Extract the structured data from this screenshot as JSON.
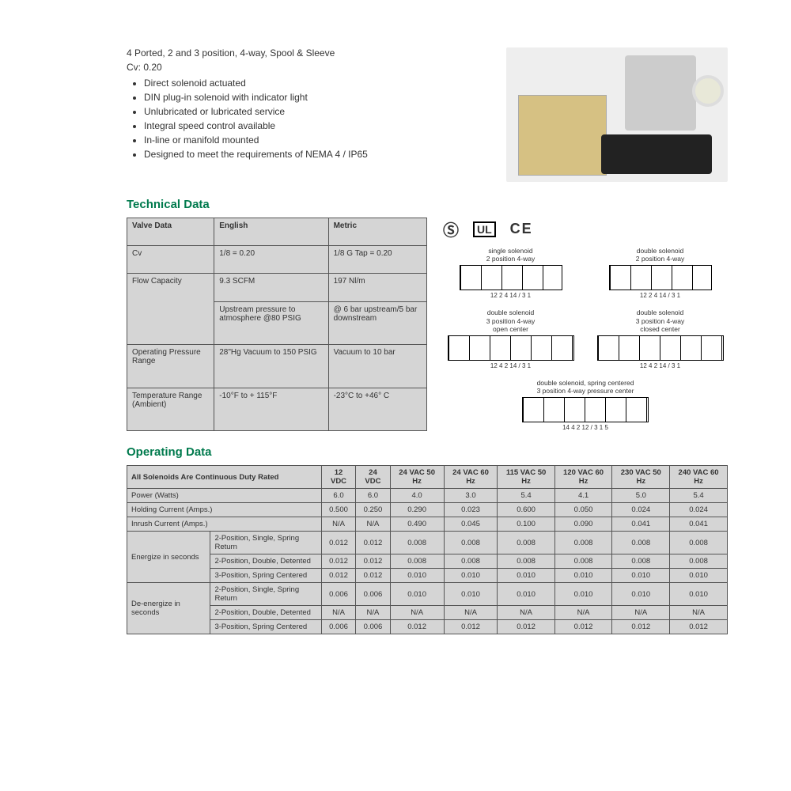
{
  "intro": {
    "headline": "4 Ported, 2 and 3 position, 4-way, Spool & Sleeve",
    "cv_line": "Cv: 0.20",
    "bullets": [
      "Direct solenoid actuated",
      "DIN plug-in solenoid with indicator light",
      "Unlubricated or lubricated service",
      "Integral speed control available",
      "In-line or manifold mounted",
      "Designed to meet the requirements of NEMA 4 / IP65"
    ]
  },
  "sections": {
    "technical": "Technical Data",
    "operating": "Operating Data"
  },
  "tech_table": {
    "headers": [
      "Valve Data",
      "English",
      "Metric"
    ],
    "rows": [
      [
        "Cv",
        "1/8 = 0.20",
        "1/8 G Tap = 0.20"
      ],
      [
        "Flow Capacity",
        "9.3 SCFM",
        "197 Nl/m"
      ],
      [
        "",
        "Upstream pressure to atmosphere @80 PSIG",
        "@ 6 bar upstream/5 bar downstream"
      ],
      [
        "Operating Pressure Range",
        "28\"Hg Vacuum to 150 PSIG",
        "Vacuum to 10 bar"
      ],
      [
        "Temperature Range (Ambient)",
        "-10°F to + 115°F",
        "-23°C to +46° C"
      ]
    ]
  },
  "certifications": {
    "csa": "CSA",
    "ul": "UL",
    "ce": "CE"
  },
  "symbols": [
    {
      "label": "single solenoid\n2 position 4-way",
      "ports": "12 2 4 14 / 3 1",
      "wide": false
    },
    {
      "label": "double solenoid\n2 position 4-way",
      "ports": "12 2 4 14 / 3 1",
      "wide": false
    },
    {
      "label": "double solenoid\n3 position 4-way\nopen center",
      "ports": "12 4 2 14 / 3 1",
      "wide": true
    },
    {
      "label": "double solenoid\n3 position 4-way\nclosed center",
      "ports": "12 4 2 14 / 3 1",
      "wide": true
    },
    {
      "label": "double solenoid, spring centered\n3 position 4-way pressure center",
      "ports": "14 4 2 12 / 3 1 5",
      "wide": true,
      "center": true
    }
  ],
  "op_table": {
    "title_row": "All Solenoids Are Continuous Duty Rated",
    "col_headers": [
      "12 VDC",
      "24 VDC",
      "24 VAC 50 Hz",
      "24 VAC 60 Hz",
      "115 VAC 50 Hz",
      "120 VAC 60 Hz",
      "230 VAC 50 Hz",
      "240 VAC 60 Hz"
    ],
    "simple_rows": [
      {
        "label": "Power (Watts)",
        "vals": [
          "6.0",
          "6.0",
          "4.0",
          "3.0",
          "5.4",
          "4.1",
          "5.0",
          "5.4"
        ]
      },
      {
        "label": "Holding Current (Amps.)",
        "vals": [
          "0.500",
          "0.250",
          "0.290",
          "0.023",
          "0.600",
          "0.050",
          "0.024",
          "0.024"
        ]
      },
      {
        "label": "Inrush Current (Amps.)",
        "vals": [
          "N/A",
          "N/A",
          "0.490",
          "0.045",
          "0.100",
          "0.090",
          "0.041",
          "0.041"
        ]
      }
    ],
    "groups": [
      {
        "group": "Energize in seconds",
        "rows": [
          {
            "label": "2-Position, Single, Spring Return",
            "vals": [
              "0.012",
              "0.012",
              "0.008",
              "0.008",
              "0.008",
              "0.008",
              "0.008",
              "0.008"
            ]
          },
          {
            "label": "2-Position, Double, Detented",
            "vals": [
              "0.012",
              "0.012",
              "0.008",
              "0.008",
              "0.008",
              "0.008",
              "0.008",
              "0.008"
            ]
          },
          {
            "label": "3-Position, Spring Centered",
            "vals": [
              "0.012",
              "0.012",
              "0.010",
              "0.010",
              "0.010",
              "0.010",
              "0.010",
              "0.010"
            ]
          }
        ]
      },
      {
        "group": "De-energize in seconds",
        "rows": [
          {
            "label": "2-Position, Single, Spring Return",
            "vals": [
              "0.006",
              "0.006",
              "0.010",
              "0.010",
              "0.010",
              "0.010",
              "0.010",
              "0.010"
            ]
          },
          {
            "label": "2-Position, Double, Detented",
            "vals": [
              "N/A",
              "N/A",
              "N/A",
              "N/A",
              "N/A",
              "N/A",
              "N/A",
              "N/A"
            ]
          },
          {
            "label": "3-Position, Spring Centered",
            "vals": [
              "0.006",
              "0.006",
              "0.012",
              "0.012",
              "0.012",
              "0.012",
              "0.012",
              "0.012"
            ]
          }
        ]
      }
    ]
  },
  "colors": {
    "accent": "#007a4d",
    "table_bg": "#d5d5d5",
    "border": "#555555"
  }
}
